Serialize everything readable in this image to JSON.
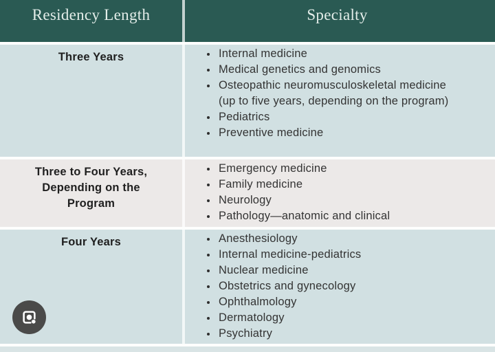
{
  "table": {
    "columns": [
      "Residency Length",
      "Specialty"
    ],
    "rows": [
      {
        "length": "Three Years",
        "specialties": [
          "Internal medicine",
          "Medical genetics and genomics",
          "Osteopathic neuromusculoskeletal medicine (up to five years, depending on the program)",
          "Pediatrics",
          "Preventive medicine"
        ]
      },
      {
        "length": "Three to Four Years, Depending on the Program",
        "specialties": [
          "Emergency medicine",
          "Family medicine",
          "Neurology",
          "Pathology—anatomic and clinical"
        ]
      },
      {
        "length": "Four Years",
        "specialties": [
          "Anesthesiology",
          "Internal medicine-pediatrics",
          "Nuclear medicine",
          "Obstetrics and gynecology",
          "Ophthalmology",
          "Dermatology",
          "Psychiatry"
        ]
      }
    ]
  },
  "lens_button": {
    "icon": "google-lens-icon"
  },
  "colors": {
    "header_bg": "#2a5a53",
    "header_text": "#e3ede9",
    "row_blue": "#d1e0e2",
    "row_gray": "#ece9e8",
    "body_text": "#333333",
    "lens_bg": "#4a4a49"
  }
}
